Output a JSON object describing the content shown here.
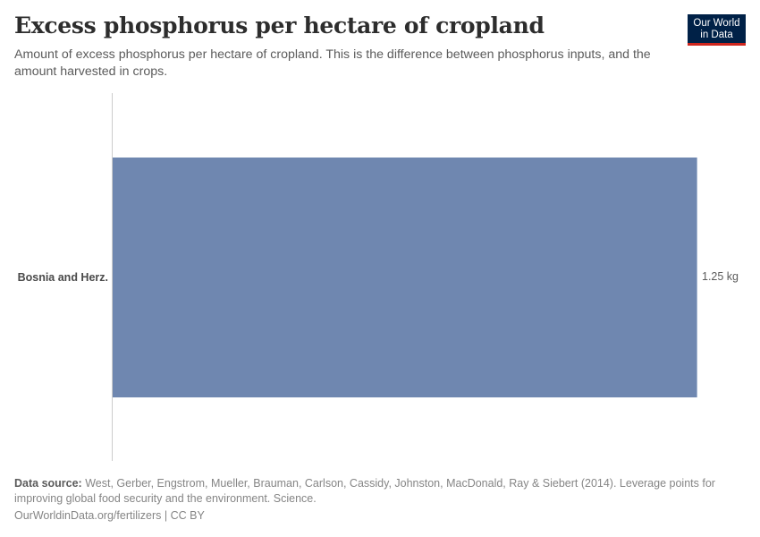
{
  "header": {
    "title": "Excess phosphorus per hectare of cropland",
    "subtitle": "Amount of excess phosphorus per hectare of cropland. This is the difference between phosphorus inputs, and the amount harvested in crops."
  },
  "logo": {
    "line1": "Our World",
    "line2": "in Data",
    "bg_color": "#002147",
    "accent_color": "#ce261e"
  },
  "footer": {
    "source_label": "Data source:",
    "source_text": " West, Gerber, Engstrom, Mueller, Brauman, Carlson, Cassidy, Johnston, MacDonald, Ray & Siebert (2014). Leverage points for improving global food security and the environment. Science.",
    "url_license": "OurWorldinData.org/fertilizers | CC BY"
  },
  "chart_data": {
    "type": "bar",
    "orientation": "horizontal",
    "title": "Excess phosphorus per hectare of cropland",
    "subtitle": "Amount of excess phosphorus per hectare of cropland. This is the difference between phosphorus inputs, and the amount harvested in crops.",
    "categories": [
      "Bosnia and Herz."
    ],
    "values": [
      1.25
    ],
    "value_labels": [
      "1.25 kg"
    ],
    "unit": "kg",
    "bar_color": "#6f87b0",
    "xlabel": "",
    "ylabel": "",
    "xlim": [
      0,
      1.25
    ],
    "grid": false,
    "legend": null
  }
}
